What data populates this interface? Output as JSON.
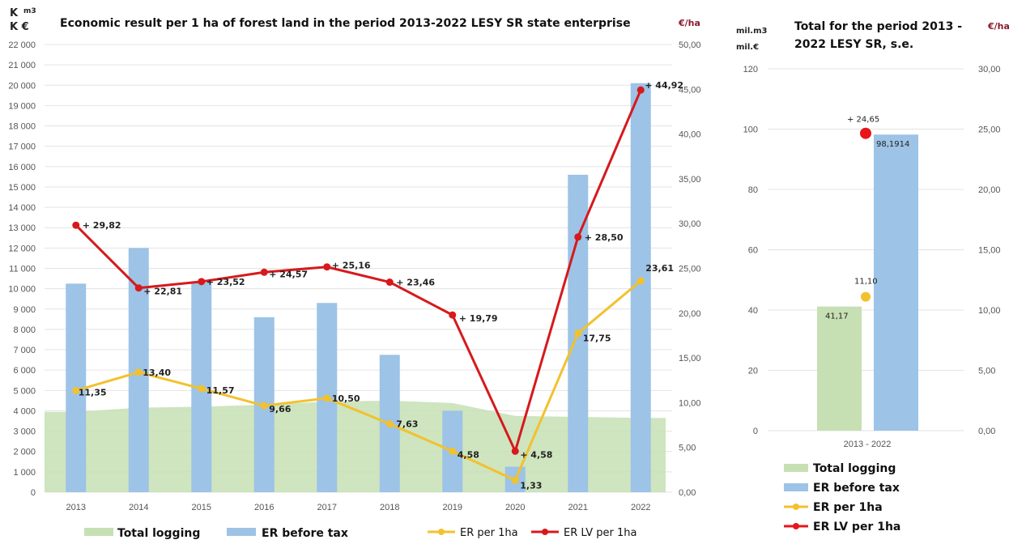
{
  "chart_data": [
    {
      "type": "bar",
      "title": "Economic result per 1 ha of forest land in the period 2013-2022 LESY SR state enterprise",
      "left_unit_top": "K",
      "left_unit_top_small": "m3",
      "left_unit_bottom": "K €",
      "right_unit": "€/ha",
      "categories": [
        "2013",
        "2014",
        "2015",
        "2016",
        "2017",
        "2018",
        "2019",
        "2020",
        "2021",
        "2022"
      ],
      "y_left_ticks": [
        "0",
        "1 000",
        "2 000",
        "3 000",
        "4 000",
        "5 000",
        "6 000",
        "7 000",
        "8 000",
        "9 000",
        "10 000",
        "11 000",
        "12 000",
        "13 000",
        "14 000",
        "15 000",
        "16 000",
        "17 000",
        "18 000",
        "19 000",
        "20 000",
        "21 000",
        "22 000"
      ],
      "y_right_ticks": [
        "0,00",
        "5,00",
        "10,00",
        "15,00",
        "20,00",
        "25,00",
        "30,00",
        "35,00",
        "40,00",
        "45,00",
        "50,00"
      ],
      "ylim_left": [
        0,
        22000
      ],
      "ylim_right": [
        0,
        50
      ],
      "series": [
        {
          "name": "Total logging",
          "kind": "area",
          "axis": "left",
          "color": "#c6e0b4",
          "values": [
            3950,
            4150,
            4200,
            4300,
            4450,
            4500,
            4380,
            3750,
            3700,
            3650
          ]
        },
        {
          "name": "ER before tax",
          "kind": "bar",
          "axis": "left",
          "color": "#9dc3e6",
          "values": [
            10250,
            12000,
            10300,
            8600,
            9300,
            6750,
            4000,
            1250,
            15600,
            20100
          ]
        },
        {
          "name": "ER per 1ha",
          "kind": "line",
          "axis": "right",
          "color": "#f2c12e",
          "values": [
            11.35,
            13.4,
            11.57,
            9.66,
            10.5,
            7.63,
            4.58,
            1.33,
            17.75,
            23.61
          ],
          "labels": [
            "11,35",
            "13,40",
            "11,57",
            "9,66",
            "10,50",
            "7,63",
            "4,58",
            "1,33",
            "17,75",
            "23,61"
          ]
        },
        {
          "name": "ER LV per 1ha",
          "kind": "line",
          "axis": "right",
          "color": "#d7191c",
          "values": [
            29.82,
            22.81,
            23.52,
            24.57,
            25.16,
            23.46,
            19.79,
            4.58,
            28.5,
            44.92
          ],
          "labels": [
            "+ 29,82",
            "+ 22,81",
            "+ 23,52",
            "+ 24,57",
            "+ 25,16",
            "+ 23,46",
            "+ 19,79",
            "+ 4,58",
            "+ 28,50",
            "+ 44,92"
          ]
        }
      ],
      "legend": {
        "position": "bottom",
        "items": [
          "Total logging",
          "ER before tax",
          "ER per 1ha",
          "ER LV per 1ha"
        ]
      },
      "grid": true
    },
    {
      "type": "bar",
      "title": "Total for the period 2013 - 2022 LESY SR, s.e.",
      "left_unit_top": "mil.m3",
      "left_unit_bottom": "mil.€",
      "right_unit": "€/ha",
      "categories": [
        "2013 - 2022"
      ],
      "y_left_ticks": [
        "0",
        "20",
        "40",
        "60",
        "80",
        "100",
        "120"
      ],
      "y_right_ticks": [
        "0,00",
        "5,00",
        "10,00",
        "15,00",
        "20,00",
        "25,00",
        "30,00"
      ],
      "ylim_left": [
        0,
        120
      ],
      "ylim_right": [
        0,
        30
      ],
      "series": [
        {
          "name": "Total logging",
          "kind": "bar",
          "axis": "left",
          "color": "#c6e0b4",
          "values": [
            41.17
          ],
          "labels": [
            "41,17"
          ]
        },
        {
          "name": "ER before tax",
          "kind": "bar",
          "axis": "left",
          "color": "#9dc3e6",
          "values": [
            98.1914
          ],
          "labels": [
            "98,1914"
          ]
        },
        {
          "name": "ER per 1ha",
          "kind": "point",
          "axis": "right",
          "color": "#f2c12e",
          "values": [
            11.1
          ],
          "labels": [
            "11,10"
          ]
        },
        {
          "name": "ER LV per 1ha",
          "kind": "point",
          "axis": "right",
          "color": "#e8151b",
          "values": [
            24.65
          ],
          "labels": [
            "+ 24,65"
          ]
        }
      ],
      "legend": {
        "position": "bottom",
        "items": [
          "Total logging",
          "ER before tax",
          "ER per 1ha",
          "ER LV per 1ha"
        ]
      },
      "grid": true
    }
  ]
}
